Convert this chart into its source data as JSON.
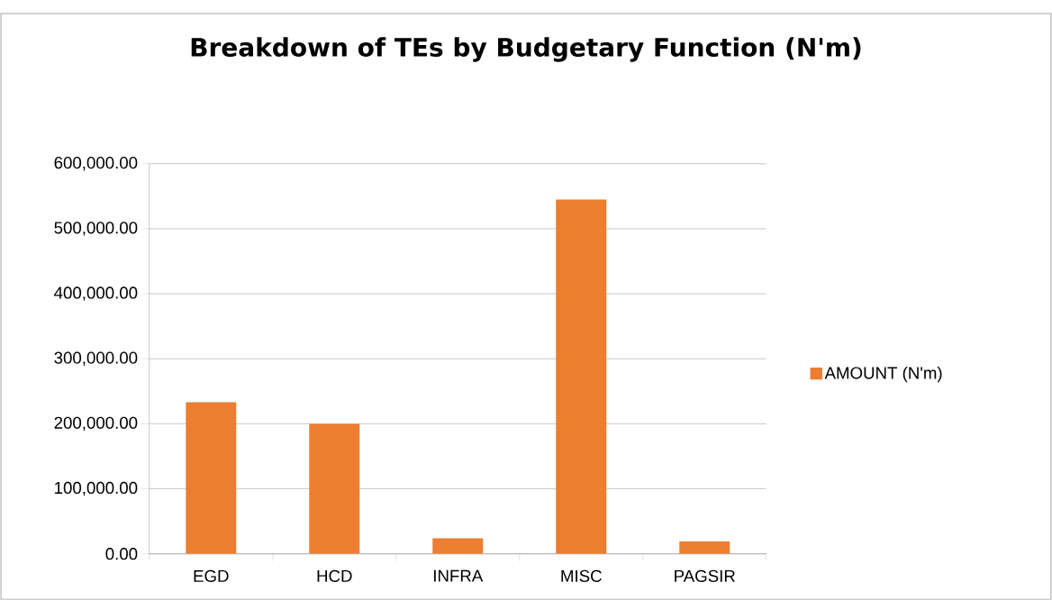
{
  "chart_data": {
    "type": "bar",
    "title": "Breakdown of TEs by Budgetary Function (N'm)",
    "categories": [
      "EGD",
      "HCD",
      "INFRA",
      "MISC",
      "PAGSIR"
    ],
    "series": [
      {
        "name": "AMOUNT (N'm)",
        "color": "#ed7d31",
        "values": [
          233000,
          200000,
          24000,
          545000,
          19000
        ]
      }
    ],
    "ylim": [
      0,
      600000
    ],
    "yticks": [
      {
        "value": 0,
        "label": "0.00"
      },
      {
        "value": 100000,
        "label": "100,000.00"
      },
      {
        "value": 200000,
        "label": "200,000.00"
      },
      {
        "value": 300000,
        "label": "300,000.00"
      },
      {
        "value": 400000,
        "label": "400,000.00"
      },
      {
        "value": 500000,
        "label": "500,000.00"
      },
      {
        "value": 600000,
        "label": "600,000.00"
      }
    ],
    "grid": "y",
    "legend": "right"
  }
}
